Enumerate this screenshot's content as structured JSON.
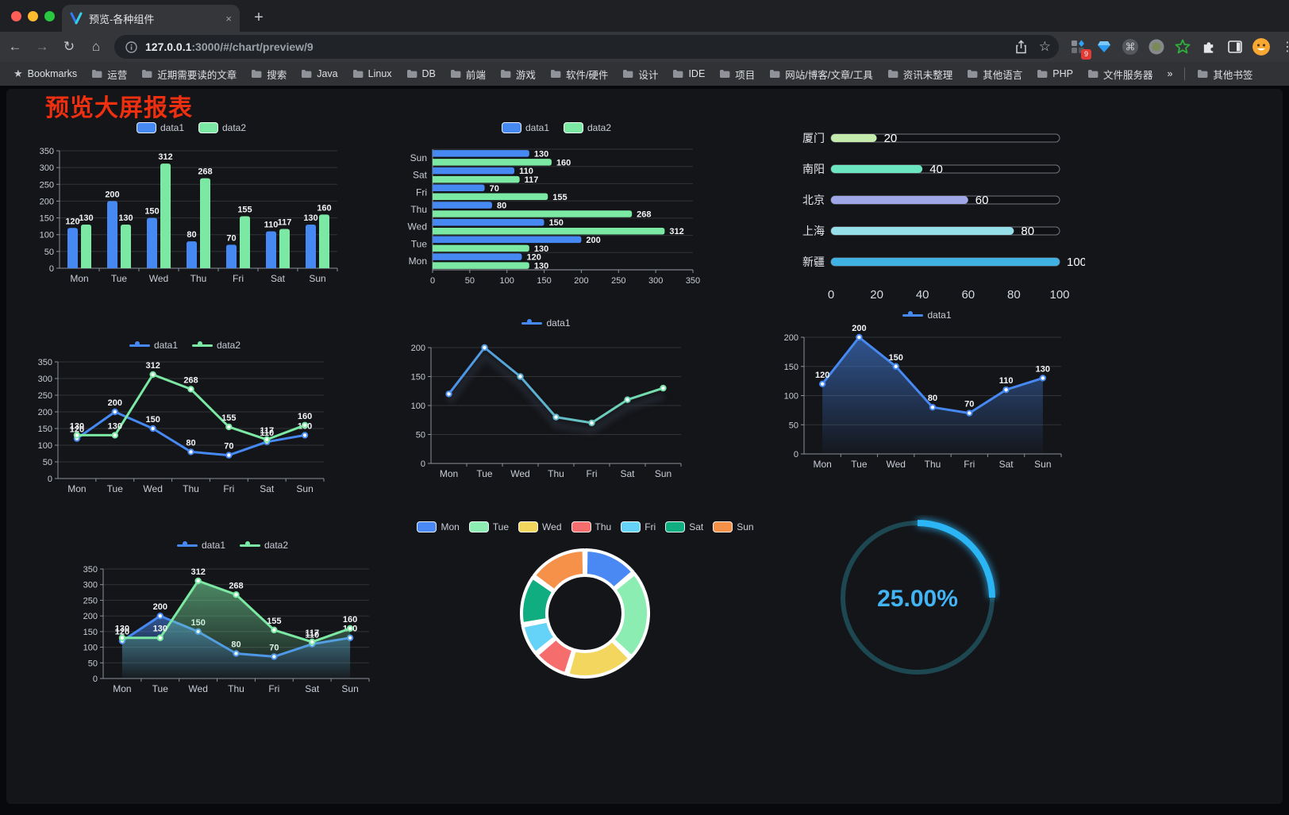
{
  "browser": {
    "tab": {
      "title": "预览-各种组件",
      "close_glyph": "×",
      "new_tab_glyph": "+"
    },
    "url": {
      "host": "127.0.0.1",
      "rest": ":3000/#/chart/preview/9"
    },
    "extensions_badge": "9",
    "bookmarks": [
      {
        "label": "Bookmarks",
        "icon": "star"
      },
      {
        "label": "运营",
        "icon": "folder"
      },
      {
        "label": "近期需要读的文章",
        "icon": "folder"
      },
      {
        "label": "搜索",
        "icon": "folder"
      },
      {
        "label": "Java",
        "icon": "folder"
      },
      {
        "label": "Linux",
        "icon": "folder"
      },
      {
        "label": "DB",
        "icon": "folder"
      },
      {
        "label": "前端",
        "icon": "folder"
      },
      {
        "label": "游戏",
        "icon": "folder"
      },
      {
        "label": "软件/硬件",
        "icon": "folder"
      },
      {
        "label": "设计",
        "icon": "folder"
      },
      {
        "label": "IDE",
        "icon": "folder"
      },
      {
        "label": "项目",
        "icon": "folder"
      },
      {
        "label": "网站/博客/文章/工具",
        "icon": "folder"
      },
      {
        "label": "资讯未整理",
        "icon": "folder"
      },
      {
        "label": "其他语言",
        "icon": "folder"
      },
      {
        "label": "PHP",
        "icon": "folder"
      },
      {
        "label": "文件服务器",
        "icon": "folder"
      },
      {
        "label": "»",
        "icon": "chevron"
      },
      {
        "label": "其他书签",
        "icon": "folder",
        "divider_before": true
      }
    ]
  },
  "page": {
    "title": "预览大屏报表",
    "title_color": "#ee2f10"
  },
  "chart_data": [
    {
      "id": "bar-grouped",
      "type": "bar",
      "orientation": "vertical",
      "categories": [
        "Mon",
        "Tue",
        "Wed",
        "Thu",
        "Fri",
        "Sat",
        "Sun"
      ],
      "series": [
        {
          "name": "data1",
          "color": "#4789f2",
          "values": [
            120,
            200,
            150,
            80,
            70,
            110,
            130
          ]
        },
        {
          "name": "data2",
          "color": "#7be9a3",
          "values": [
            130,
            130,
            312,
            268,
            155,
            117,
            160
          ]
        }
      ],
      "ylim": [
        0,
        350
      ],
      "ytick_step": 50,
      "grid": true,
      "value_labels": true,
      "legend_position": "top"
    },
    {
      "id": "bar-grouped-horizontal",
      "type": "bar",
      "orientation": "horizontal",
      "categories": [
        "Mon",
        "Tue",
        "Wed",
        "Thu",
        "Fri",
        "Sat",
        "Sun"
      ],
      "series": [
        {
          "name": "data1",
          "color": "#4789f2",
          "values": [
            120,
            200,
            150,
            80,
            70,
            110,
            130
          ]
        },
        {
          "name": "data2",
          "color": "#7be9a3",
          "values": [
            130,
            130,
            312,
            268,
            155,
            117,
            160
          ]
        }
      ],
      "xlim": [
        0,
        350
      ],
      "xtick_step": 50,
      "grid": true,
      "value_labels": true,
      "legend_position": "top"
    },
    {
      "id": "progress-bars",
      "type": "bar",
      "orientation": "horizontal",
      "subtype": "progress",
      "rows": [
        {
          "label": "厦门",
          "value": 20,
          "color": "#c4ebad"
        },
        {
          "label": "南阳",
          "value": 40,
          "color": "#6be6c1"
        },
        {
          "label": "北京",
          "value": 60,
          "color": "#a0a7e6"
        },
        {
          "label": "上海",
          "value": 80,
          "color": "#96dee8"
        },
        {
          "label": "新疆",
          "value": 100,
          "color": "#3fb1e3"
        }
      ],
      "xlim": [
        0,
        100
      ],
      "xticks": [
        0,
        20,
        40,
        60,
        80,
        100
      ]
    },
    {
      "id": "line-two-series",
      "type": "line",
      "categories": [
        "Mon",
        "Tue",
        "Wed",
        "Thu",
        "Fri",
        "Sat",
        "Sun"
      ],
      "series": [
        {
          "name": "data1",
          "color": "#4789f2",
          "values": [
            120,
            200,
            150,
            80,
            70,
            110,
            130
          ]
        },
        {
          "name": "data2",
          "color": "#7be9a3",
          "values": [
            130,
            130,
            312,
            268,
            155,
            117,
            160
          ]
        }
      ],
      "ylim": [
        0,
        350
      ],
      "ytick_step": 50,
      "grid": true,
      "value_labels": true,
      "legend_position": "top"
    },
    {
      "id": "line-gradient",
      "type": "line",
      "categories": [
        "Mon",
        "Tue",
        "Wed",
        "Thu",
        "Fri",
        "Sat",
        "Sun"
      ],
      "series": [
        {
          "name": "data1",
          "gradient": [
            "#4789f2",
            "#7be9a3"
          ],
          "values": [
            120,
            200,
            150,
            80,
            70,
            110,
            130
          ]
        }
      ],
      "ylim": [
        0,
        200
      ],
      "ytick_step": 50,
      "grid": true,
      "value_labels": false,
      "shadow": true,
      "legend_position": "top"
    },
    {
      "id": "line-area",
      "type": "line",
      "categories": [
        "Mon",
        "Tue",
        "Wed",
        "Thu",
        "Fri",
        "Sat",
        "Sun"
      ],
      "series": [
        {
          "name": "data1",
          "color": "#4789f2",
          "area": true,
          "values": [
            120,
            200,
            150,
            80,
            70,
            110,
            130
          ]
        }
      ],
      "ylim": [
        0,
        200
      ],
      "ytick_step": 50,
      "grid": true,
      "value_labels": true,
      "legend_position": "top"
    },
    {
      "id": "line-area-two",
      "type": "line",
      "categories": [
        "Mon",
        "Tue",
        "Wed",
        "Thu",
        "Fri",
        "Sat",
        "Sun"
      ],
      "series": [
        {
          "name": "data1",
          "color": "#4789f2",
          "area": true,
          "values": [
            120,
            200,
            150,
            80,
            70,
            110,
            130
          ]
        },
        {
          "name": "data2",
          "color": "#7be9a3",
          "area": true,
          "values": [
            130,
            130,
            312,
            268,
            155,
            117,
            160
          ]
        }
      ],
      "ylim": [
        0,
        350
      ],
      "ytick_step": 50,
      "grid": true,
      "value_labels": true,
      "legend_position": "top"
    },
    {
      "id": "donut",
      "type": "pie",
      "inner_radius_ratio": 0.6,
      "legend_position": "top",
      "items": [
        {
          "name": "Mon",
          "value": 120,
          "color": "#4a89f3"
        },
        {
          "name": "Tue",
          "value": 200,
          "color": "#8cedb2"
        },
        {
          "name": "Wed",
          "value": 150,
          "color": "#f3d65e"
        },
        {
          "name": "Thu",
          "value": 80,
          "color": "#f66d6e"
        },
        {
          "name": "Fri",
          "value": 70,
          "color": "#65d3f7"
        },
        {
          "name": "Sat",
          "value": 110,
          "color": "#10ad80"
        },
        {
          "name": "Sun",
          "value": 130,
          "color": "#f6914a"
        }
      ]
    },
    {
      "id": "gauge",
      "type": "gauge",
      "value": 25,
      "value_text": "25.00%",
      "color": "#2cb5f4",
      "track_color": "#1d4852",
      "text_color": "#42b4f3"
    }
  ]
}
